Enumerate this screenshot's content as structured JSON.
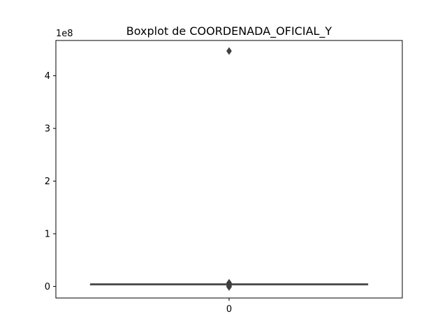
{
  "chart_data": {
    "type": "boxplot",
    "title": "Boxplot de COORDENADA_OFICIAL_Y",
    "axis_offset_label": "1e8",
    "categories": [
      "0"
    ],
    "y_ticks": [
      0,
      1,
      2,
      3,
      4
    ],
    "y_scale_multiplier": 100000000,
    "ylim": [
      -0.22,
      4.67
    ],
    "box": {
      "q1": 0.043,
      "median": 0.044,
      "q3": 0.045,
      "whisker_low": 0.043,
      "whisker_high": 0.045
    },
    "outliers": [
      4.47,
      0.07,
      0.06,
      0.05,
      0.04,
      0.03,
      0.02,
      0.01,
      0.0,
      -0.01
    ],
    "colors": {
      "box_edge": "#3f3f3f",
      "box_fill": "#3a75c4",
      "outlier": "#3f3f3f"
    }
  }
}
